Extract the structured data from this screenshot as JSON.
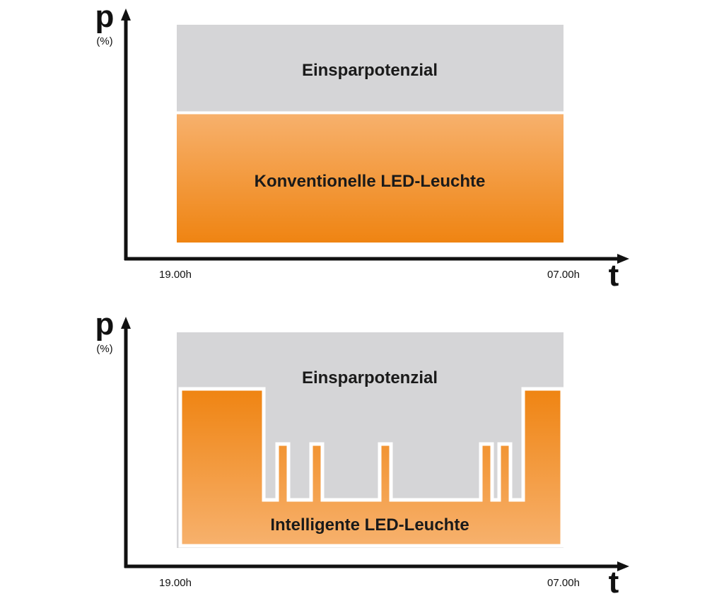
{
  "panels": [
    {
      "y_axis_symbol": "p",
      "y_axis_unit": "(%)",
      "x_axis_symbol": "t",
      "x_start_label": "19.00h",
      "x_end_label": "07.00h",
      "top_region_label": "Einsparpotenzial",
      "bottom_region_label": "Konventionelle LED-Leuchte"
    },
    {
      "y_axis_symbol": "p",
      "y_axis_unit": "(%)",
      "x_axis_symbol": "t",
      "x_start_label": "19.00h",
      "x_end_label": "07.00h",
      "top_region_label": "Einsparpotenzial",
      "bottom_region_label": "Intelligente LED-Leuchte"
    }
  ],
  "colors": {
    "savings_gray": "#d5d5d7",
    "orange_dark": "#ef8412",
    "orange_light": "#f7b16d",
    "axis": "#111111",
    "outline": "#ffffff"
  }
}
